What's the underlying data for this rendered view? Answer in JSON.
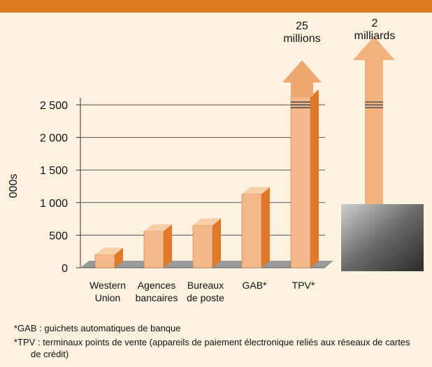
{
  "chart_data": {
    "type": "bar3d",
    "y_label": "000s",
    "categories": [
      "Western\nUnion",
      "Agences\nbancaires",
      "Bureaux\nde poste",
      "GAB*",
      "TPV*"
    ],
    "values": [
      200,
      560,
      650,
      1130,
      25000
    ],
    "value_labels": [
      null,
      null,
      null,
      null,
      "25\nmillions"
    ],
    "color": "#f4b98a",
    "side_color": "#e0792a",
    "ylim": [
      0,
      2500
    ],
    "yticks": [
      0,
      500,
      {
        "value": 1000,
        "label": "1 000"
      },
      {
        "value": 1500,
        "label": "1 500"
      },
      {
        "value": 2000,
        "label": "2 000"
      },
      {
        "value": 2500,
        "label": "2 500"
      }
    ],
    "grid": true,
    "extra_arrow_label": "2\nmilliards"
  },
  "footnotes": [
    "*GAB : guichets automatiques de banque",
    "*TPV : terminaux points de vente (appareils de paiement électronique reliés aux réseaux de cartes de crédit)"
  ]
}
